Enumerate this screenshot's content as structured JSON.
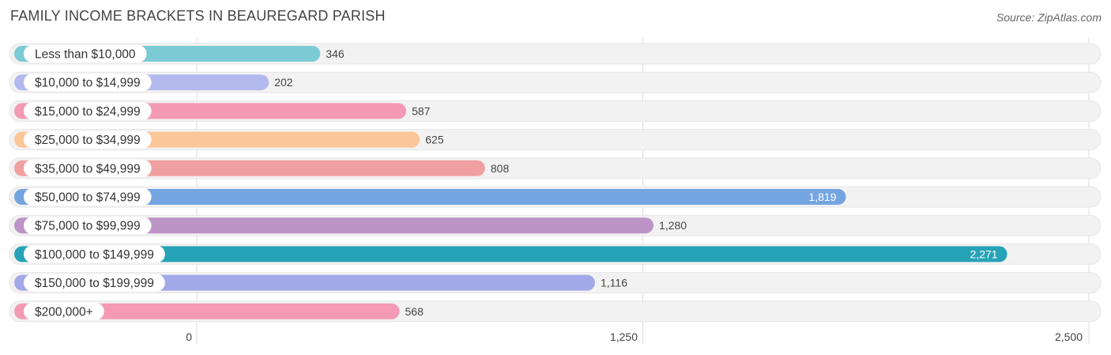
{
  "header": {
    "title": "FAMILY INCOME BRACKETS IN BEAUREGARD PARISH",
    "source": "Source: ZipAtlas.com"
  },
  "colors": {
    "palette": [
      "#7ccbd4",
      "#b3b9ec",
      "#f49ab6",
      "#fbc698",
      "#f0a0a0",
      "#74a5e0",
      "#bd94c6",
      "#27a3b7",
      "#a3a8e8",
      "#f49ab6"
    ],
    "row_background": "#f2f2f2",
    "grid": "#dddddd"
  },
  "chart_data": {
    "type": "bar",
    "orientation": "horizontal",
    "categories": [
      "Less than $10,000",
      "$10,000 to $14,999",
      "$15,000 to $24,999",
      "$25,000 to $34,999",
      "$35,000 to $49,999",
      "$50,000 to $74,999",
      "$75,000 to $99,999",
      "$100,000 to $149,999",
      "$150,000 to $199,999",
      "$200,000+"
    ],
    "values": [
      346,
      202,
      587,
      625,
      808,
      1819,
      1280,
      2271,
      1116,
      568
    ],
    "value_labels": [
      "346",
      "202",
      "587",
      "625",
      "808",
      "1,819",
      "1,280",
      "2,271",
      "1,116",
      "568"
    ],
    "xlim": [
      0,
      2500
    ],
    "ticks": [
      0,
      1250,
      2500
    ],
    "tick_labels": [
      "0",
      "1,250",
      "2,500"
    ],
    "grid": true,
    "legend": "none"
  }
}
